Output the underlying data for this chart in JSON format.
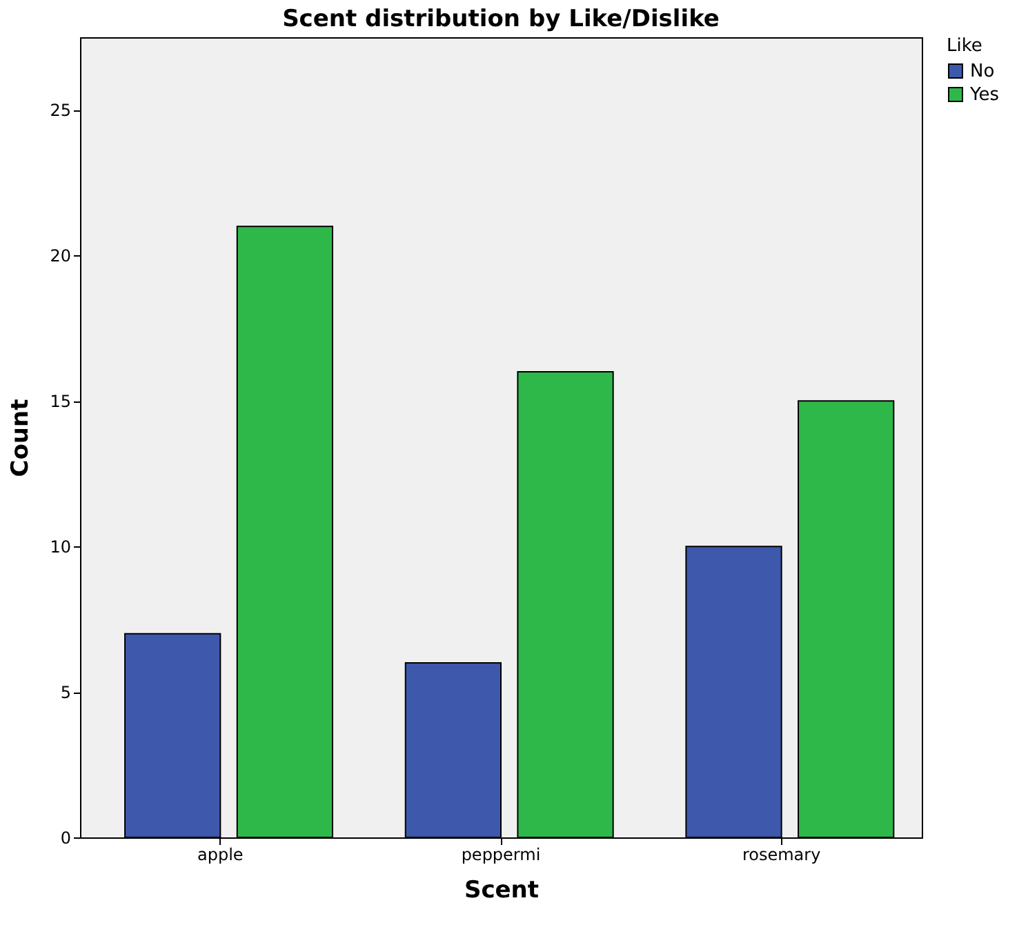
{
  "chart_data": {
    "type": "bar",
    "title": "Scent distribution by Like/Dislike",
    "xlabel": "Scent",
    "ylabel": "Count",
    "legend_title": "Like",
    "categories": [
      "apple",
      "peppermi",
      "rosemary"
    ],
    "series": [
      {
        "name": "No",
        "color": "#3e58ac",
        "values": [
          7,
          6,
          10
        ]
      },
      {
        "name": "Yes",
        "color": "#2fb84a",
        "values": [
          21,
          16,
          15
        ]
      }
    ],
    "ylim": [
      0,
      27.5
    ],
    "yticks": [
      0,
      5,
      10,
      15,
      20,
      25
    ],
    "grid": false,
    "legend": "top right"
  }
}
